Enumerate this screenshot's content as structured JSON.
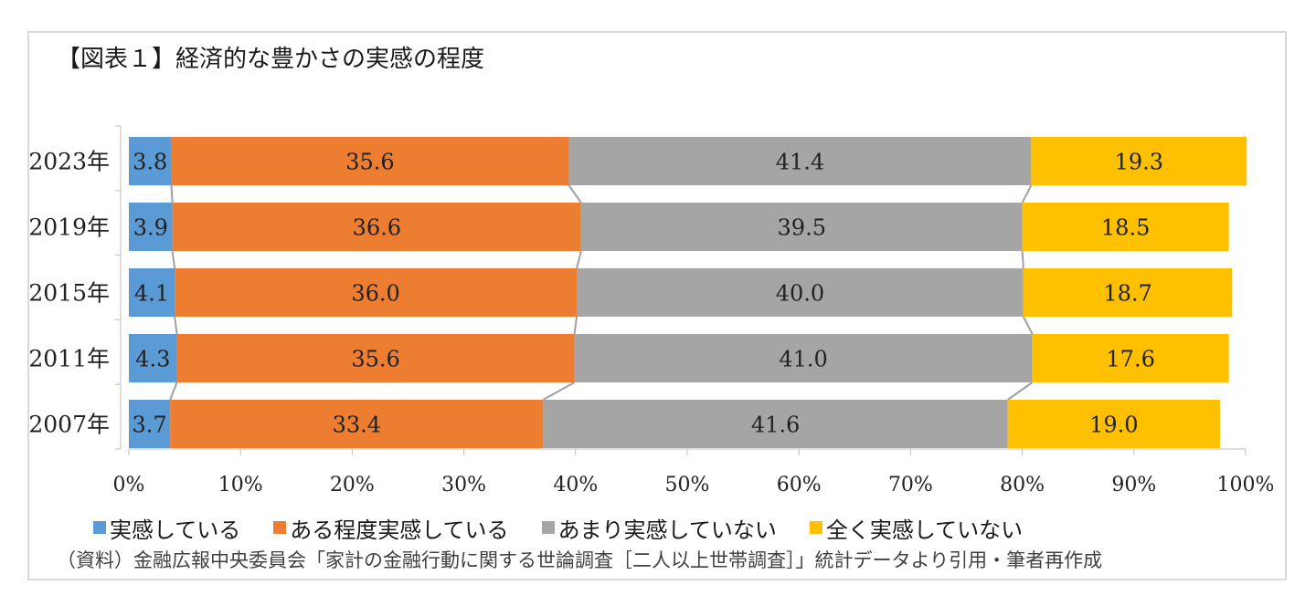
{
  "title": "【図表１】経済的な豊かさの実感の程度",
  "source": "（資料）金融広報中央委員会「家計の金融行動に関する世論調査［二人以上世帯調査］」統計データより引用・筆者再作成",
  "chart_data": {
    "type": "bar",
    "orientation": "horizontal",
    "stacked": "percent",
    "categories": [
      "2023年",
      "2019年",
      "2015年",
      "2011年",
      "2007年"
    ],
    "series": [
      {
        "name": "実感している",
        "color": "#5b9bd5",
        "values": [
          3.8,
          3.9,
          4.1,
          4.3,
          3.7
        ]
      },
      {
        "name": "ある程度実感している",
        "color": "#ed7d31",
        "values": [
          35.6,
          36.6,
          36.0,
          35.6,
          33.4
        ]
      },
      {
        "name": "あまり実感していない",
        "color": "#a5a5a5",
        "values": [
          41.4,
          39.5,
          40.0,
          41.0,
          41.6
        ]
      },
      {
        "name": "全く実感していない",
        "color": "#ffc000",
        "values": [
          19.3,
          18.5,
          18.7,
          17.6,
          19.0
        ]
      }
    ],
    "x_ticks": [
      "0%",
      "10%",
      "20%",
      "30%",
      "40%",
      "50%",
      "60%",
      "70%",
      "80%",
      "90%",
      "100%"
    ],
    "xlim": [
      0,
      100
    ],
    "series_lines": true,
    "grid": false,
    "legend": "bottom"
  }
}
